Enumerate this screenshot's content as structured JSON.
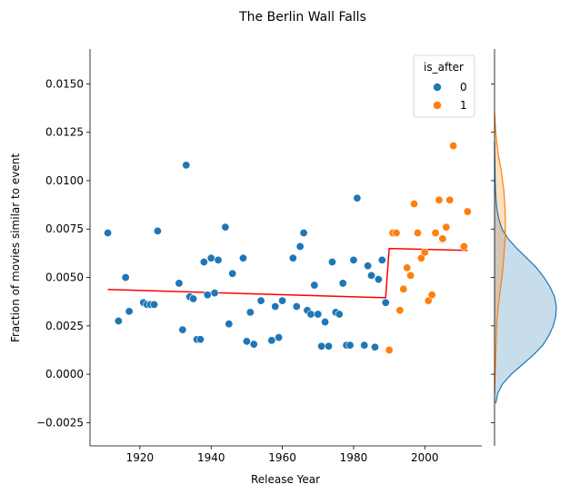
{
  "chart_data": {
    "type": "scatter",
    "title": "The Berlin Wall Falls",
    "xlabel": "Release Year",
    "ylabel": "Fraction of movies similar to event",
    "xlim": [
      1906,
      2016
    ],
    "ylim": [
      -0.0037,
      0.0168
    ],
    "xticks": [
      1920,
      1940,
      1960,
      1980,
      2000
    ],
    "yticks": [
      -0.0025,
      0.0,
      0.0025,
      0.005,
      0.0075,
      0.01,
      0.0125,
      0.015
    ],
    "ytick_labels": [
      "−0.0025",
      "0.0000",
      "0.0025",
      "0.0050",
      "0.0075",
      "0.0100",
      "0.0125",
      "0.0150"
    ],
    "grid": false,
    "legend": {
      "title": "is_after",
      "placement": "top-right",
      "entries": [
        "0",
        "1"
      ]
    },
    "colors": {
      "before": "#1f77b4",
      "after": "#ff7f0e",
      "fit": "#ff0000"
    },
    "series": [
      {
        "name": "0",
        "points": [
          [
            1911,
            0.0073
          ],
          [
            1914,
            0.00275
          ],
          [
            1916,
            0.005
          ],
          [
            1917,
            0.00325
          ],
          [
            1921,
            0.0037
          ],
          [
            1922,
            0.0036
          ],
          [
            1923,
            0.0036
          ],
          [
            1924,
            0.0036
          ],
          [
            1925,
            0.0074
          ],
          [
            1931,
            0.0047
          ],
          [
            1932,
            0.0023
          ],
          [
            1933,
            0.0108
          ],
          [
            1934,
            0.004
          ],
          [
            1935,
            0.0039
          ],
          [
            1936,
            0.0018
          ],
          [
            1937,
            0.0018
          ],
          [
            1938,
            0.0058
          ],
          [
            1939,
            0.0041
          ],
          [
            1940,
            0.006
          ],
          [
            1941,
            0.0042
          ],
          [
            1942,
            0.0059
          ],
          [
            1944,
            0.0076
          ],
          [
            1945,
            0.0026
          ],
          [
            1946,
            0.0052
          ],
          [
            1949,
            0.006
          ],
          [
            1950,
            0.0017
          ],
          [
            1951,
            0.0032
          ],
          [
            1952,
            0.00155
          ],
          [
            1954,
            0.0038
          ],
          [
            1957,
            0.00175
          ],
          [
            1958,
            0.0035
          ],
          [
            1959,
            0.0019
          ],
          [
            1960,
            0.0038
          ],
          [
            1963,
            0.006
          ],
          [
            1964,
            0.0035
          ],
          [
            1965,
            0.0066
          ],
          [
            1966,
            0.0073
          ],
          [
            1967,
            0.0033
          ],
          [
            1968,
            0.0031
          ],
          [
            1969,
            0.0046
          ],
          [
            1970,
            0.0031
          ],
          [
            1971,
            0.00145
          ],
          [
            1972,
            0.0027
          ],
          [
            1973,
            0.00145
          ],
          [
            1974,
            0.0058
          ],
          [
            1975,
            0.0032
          ],
          [
            1976,
            0.0031
          ],
          [
            1977,
            0.0047
          ],
          [
            1978,
            0.0015
          ],
          [
            1979,
            0.0015
          ],
          [
            1980,
            0.0059
          ],
          [
            1981,
            0.0091
          ],
          [
            1983,
            0.0015
          ],
          [
            1984,
            0.0056
          ],
          [
            1985,
            0.0051
          ],
          [
            1986,
            0.0014
          ],
          [
            1987,
            0.0049
          ],
          [
            1988,
            0.0059
          ],
          [
            1989,
            0.0037
          ]
        ]
      },
      {
        "name": "1",
        "points": [
          [
            1990,
            0.00125
          ],
          [
            1991,
            0.0073
          ],
          [
            1992,
            0.0073
          ],
          [
            1993,
            0.0033
          ],
          [
            1994,
            0.0044
          ],
          [
            1995,
            0.0055
          ],
          [
            1996,
            0.0051
          ],
          [
            1997,
            0.0088
          ],
          [
            1998,
            0.0073
          ],
          [
            1999,
            0.006
          ],
          [
            2000,
            0.0063
          ],
          [
            2001,
            0.0038
          ],
          [
            2002,
            0.0041
          ],
          [
            2003,
            0.0073
          ],
          [
            2004,
            0.009
          ],
          [
            2005,
            0.007
          ],
          [
            2006,
            0.0076
          ],
          [
            2007,
            0.009
          ],
          [
            2008,
            0.0118
          ],
          [
            2011,
            0.0066
          ],
          [
            2012,
            0.0084
          ]
        ]
      }
    ],
    "fit_line": {
      "before": [
        [
          1911,
          0.00438
        ],
        [
          1989,
          0.00395
        ]
      ],
      "after": [
        [
          1990,
          0.0065
        ],
        [
          2012,
          0.0064
        ]
      ]
    },
    "marginal_kde": {
      "series_0": [
        [
          -0.0015,
          0.02
        ],
        [
          -0.001,
          0.05
        ],
        [
          -0.0005,
          0.13
        ],
        [
          0.0,
          0.27
        ],
        [
          0.0005,
          0.45
        ],
        [
          0.001,
          0.63
        ],
        [
          0.0015,
          0.78
        ],
        [
          0.002,
          0.88
        ],
        [
          0.0025,
          0.95
        ],
        [
          0.003,
          0.99
        ],
        [
          0.0035,
          1.0
        ],
        [
          0.004,
          0.97
        ],
        [
          0.0045,
          0.9
        ],
        [
          0.005,
          0.8
        ],
        [
          0.0055,
          0.68
        ],
        [
          0.006,
          0.52
        ],
        [
          0.0065,
          0.36
        ],
        [
          0.007,
          0.22
        ],
        [
          0.0075,
          0.12
        ],
        [
          0.008,
          0.07
        ],
        [
          0.0085,
          0.04
        ],
        [
          0.009,
          0.025
        ],
        [
          0.0095,
          0.015
        ],
        [
          0.01,
          0.01
        ],
        [
          0.0105,
          0.007
        ],
        [
          0.011,
          0.004
        ],
        [
          0.0115,
          0.002
        ],
        [
          0.012,
          0.0
        ]
      ],
      "series_1": [
        [
          -0.001,
          0.0
        ],
        [
          -0.0005,
          0.005
        ],
        [
          0.0,
          0.01
        ],
        [
          0.0005,
          0.015
        ],
        [
          0.001,
          0.02
        ],
        [
          0.0015,
          0.025
        ],
        [
          0.002,
          0.03
        ],
        [
          0.0025,
          0.035
        ],
        [
          0.003,
          0.045
        ],
        [
          0.0035,
          0.06
        ],
        [
          0.004,
          0.08
        ],
        [
          0.0045,
          0.1
        ],
        [
          0.005,
          0.12
        ],
        [
          0.0055,
          0.135
        ],
        [
          0.006,
          0.15
        ],
        [
          0.0065,
          0.16
        ],
        [
          0.007,
          0.17
        ],
        [
          0.0075,
          0.175
        ],
        [
          0.008,
          0.175
        ],
        [
          0.0085,
          0.17
        ],
        [
          0.009,
          0.16
        ],
        [
          0.0095,
          0.15
        ],
        [
          0.01,
          0.13
        ],
        [
          0.0105,
          0.11
        ],
        [
          0.011,
          0.08
        ],
        [
          0.0115,
          0.055
        ],
        [
          0.012,
          0.035
        ],
        [
          0.0125,
          0.02
        ],
        [
          0.013,
          0.01
        ],
        [
          0.0135,
          0.0
        ]
      ]
    }
  }
}
